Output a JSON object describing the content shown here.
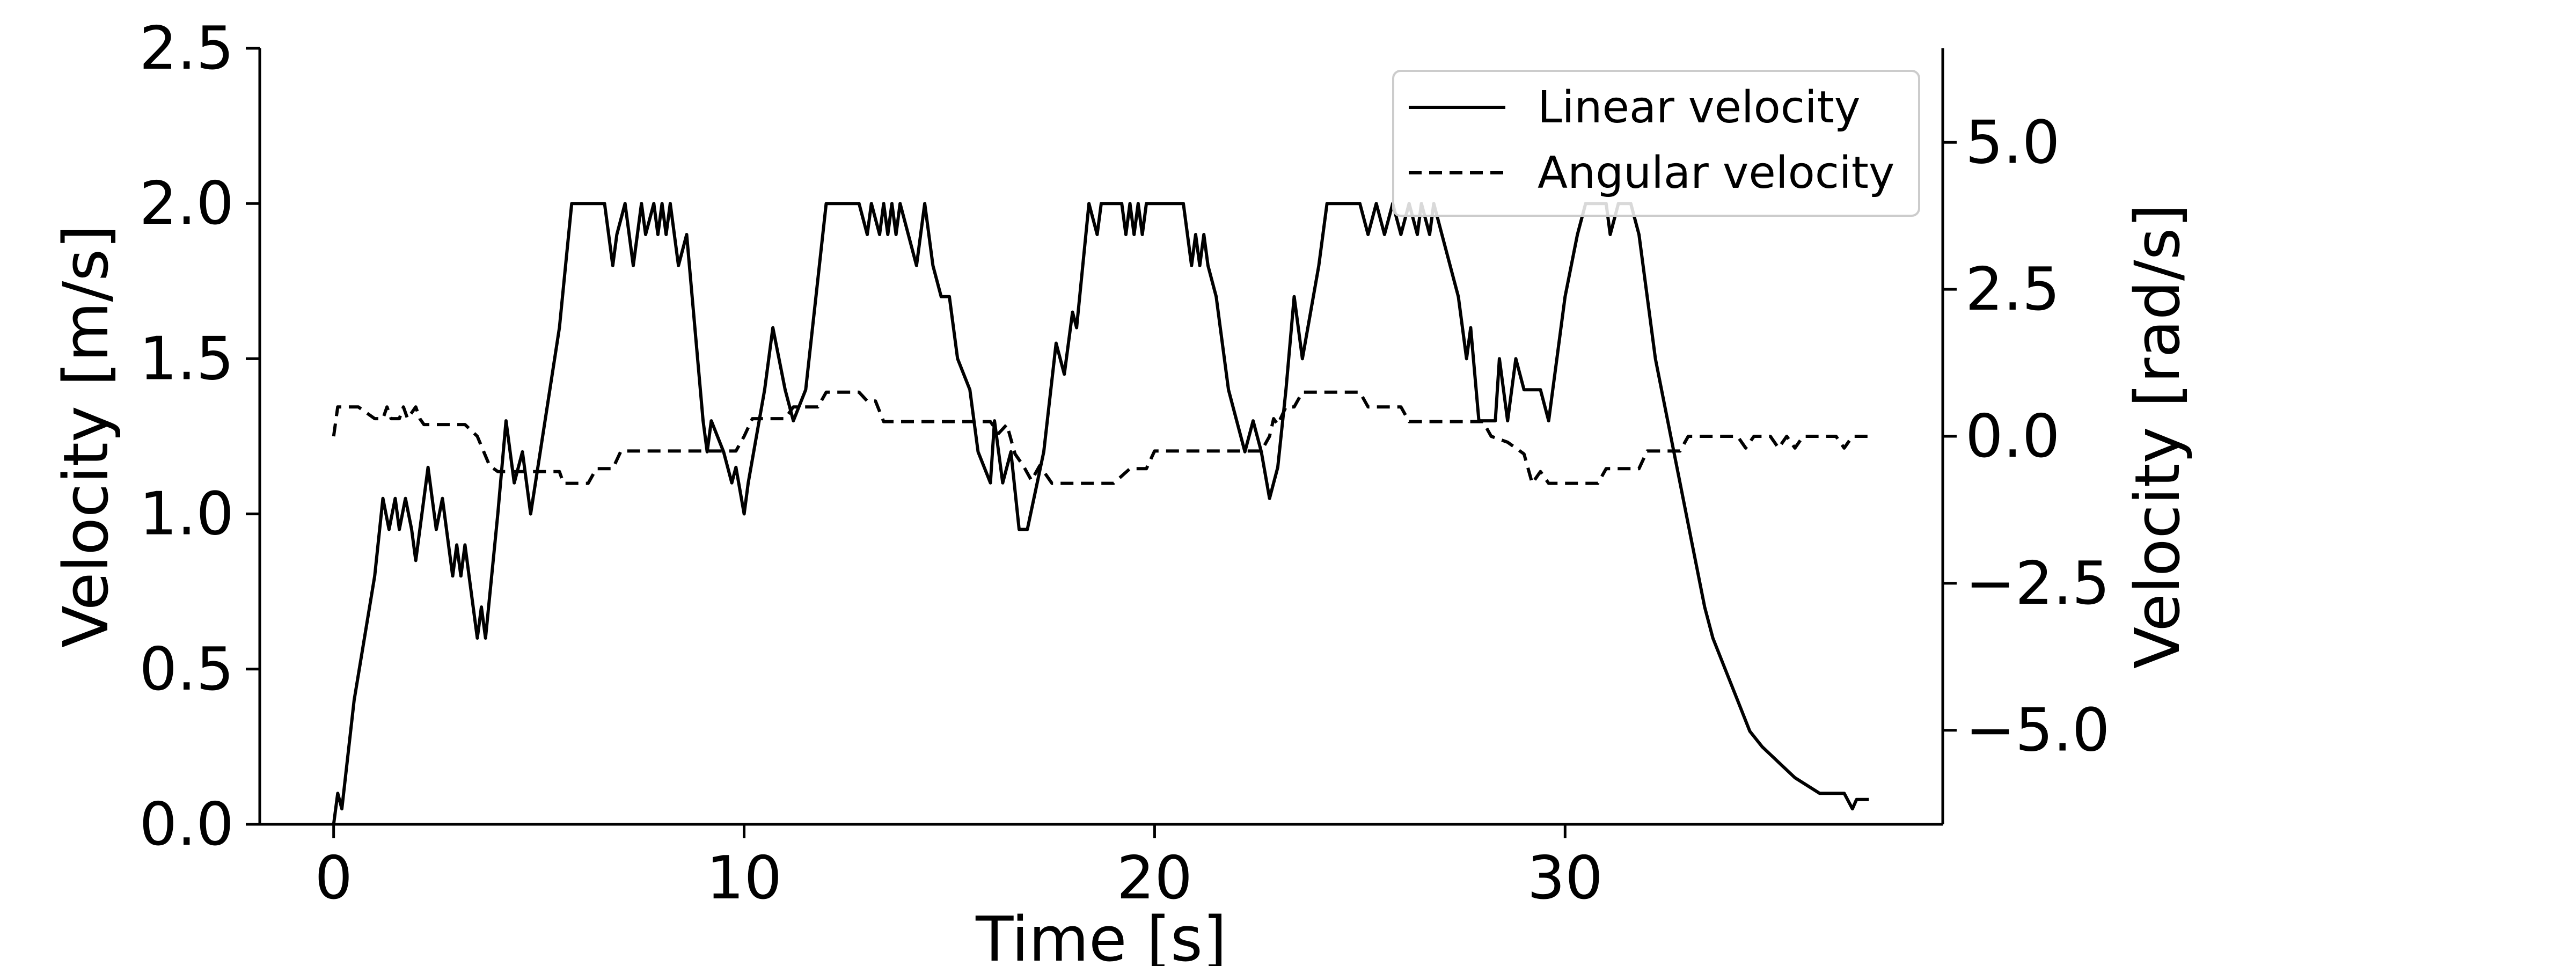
{
  "chart_data": {
    "type": "line",
    "xlabel": "Time [s]",
    "ylabel": "Velocity [m/s]",
    "y2label": "Velocity [rad/s]",
    "xlim": [
      -1.8,
      39.2
    ],
    "ylim": [
      0,
      2.5
    ],
    "y2lim": [
      -6.6,
      6.6
    ],
    "xticks": [
      0,
      10,
      20,
      30
    ],
    "yticks": [
      0.0,
      0.5,
      1.0,
      1.5,
      2.0,
      2.5
    ],
    "y2ticks": [
      -5.0,
      -2.5,
      0.0,
      2.5,
      5.0
    ],
    "xtick_labels": [
      "0",
      "10",
      "20",
      "30"
    ],
    "ytick_labels": [
      "0.0",
      "0.5",
      "1.0",
      "1.5",
      "2.0",
      "2.5"
    ],
    "y2tick_labels": [
      "−5.0",
      "−2.5",
      "0.0",
      "2.5",
      "5.0"
    ],
    "grid": false,
    "legend": {
      "position": "top-right",
      "entries": [
        "Linear velocity",
        "Angular velocity"
      ]
    },
    "series": [
      {
        "name": "Linear velocity",
        "axis": "left",
        "style": "solid",
        "color": "#000000",
        "points": [
          [
            0.0,
            0.0
          ],
          [
            0.1,
            0.1
          ],
          [
            0.2,
            0.05
          ],
          [
            0.5,
            0.4
          ],
          [
            1.0,
            0.8
          ],
          [
            1.2,
            1.05
          ],
          [
            1.35,
            0.95
          ],
          [
            1.5,
            1.05
          ],
          [
            1.6,
            0.95
          ],
          [
            1.75,
            1.05
          ],
          [
            1.9,
            0.95
          ],
          [
            2.0,
            0.85
          ],
          [
            2.3,
            1.15
          ],
          [
            2.5,
            0.95
          ],
          [
            2.65,
            1.05
          ],
          [
            2.8,
            0.9
          ],
          [
            2.9,
            0.8
          ],
          [
            3.0,
            0.9
          ],
          [
            3.1,
            0.8
          ],
          [
            3.2,
            0.9
          ],
          [
            3.4,
            0.7
          ],
          [
            3.5,
            0.6
          ],
          [
            3.6,
            0.7
          ],
          [
            3.7,
            0.6
          ],
          [
            4.0,
            1.0
          ],
          [
            4.2,
            1.3
          ],
          [
            4.4,
            1.1
          ],
          [
            4.6,
            1.2
          ],
          [
            4.8,
            1.0
          ],
          [
            5.5,
            1.6
          ],
          [
            5.8,
            2.0
          ],
          [
            6.0,
            2.0
          ],
          [
            6.6,
            2.0
          ],
          [
            6.8,
            1.8
          ],
          [
            6.9,
            1.9
          ],
          [
            7.1,
            2.0
          ],
          [
            7.3,
            1.8
          ],
          [
            7.5,
            2.0
          ],
          [
            7.6,
            1.9
          ],
          [
            7.8,
            2.0
          ],
          [
            7.9,
            1.9
          ],
          [
            8.0,
            2.0
          ],
          [
            8.1,
            1.9
          ],
          [
            8.2,
            2.0
          ],
          [
            8.4,
            1.8
          ],
          [
            8.6,
            1.9
          ],
          [
            8.8,
            1.6
          ],
          [
            9.0,
            1.3
          ],
          [
            9.1,
            1.2
          ],
          [
            9.2,
            1.3
          ],
          [
            9.5,
            1.2
          ],
          [
            9.7,
            1.1
          ],
          [
            9.8,
            1.15
          ],
          [
            10.0,
            1.0
          ],
          [
            10.1,
            1.1
          ],
          [
            10.5,
            1.4
          ],
          [
            10.7,
            1.6
          ],
          [
            11.0,
            1.4
          ],
          [
            11.2,
            1.3
          ],
          [
            11.5,
            1.4
          ],
          [
            12.0,
            2.0
          ],
          [
            12.8,
            2.0
          ],
          [
            13.0,
            1.9
          ],
          [
            13.1,
            2.0
          ],
          [
            13.3,
            1.9
          ],
          [
            13.4,
            2.0
          ],
          [
            13.5,
            1.9
          ],
          [
            13.6,
            2.0
          ],
          [
            13.7,
            1.9
          ],
          [
            13.8,
            2.0
          ],
          [
            14.0,
            1.9
          ],
          [
            14.2,
            1.8
          ],
          [
            14.4,
            2.0
          ],
          [
            14.6,
            1.8
          ],
          [
            14.8,
            1.7
          ],
          [
            15.0,
            1.7
          ],
          [
            15.2,
            1.5
          ],
          [
            15.5,
            1.4
          ],
          [
            15.7,
            1.2
          ],
          [
            16.0,
            1.1
          ],
          [
            16.1,
            1.3
          ],
          [
            16.3,
            1.1
          ],
          [
            16.5,
            1.2
          ],
          [
            16.7,
            0.95
          ],
          [
            16.9,
            0.95
          ],
          [
            17.3,
            1.2
          ],
          [
            17.6,
            1.55
          ],
          [
            17.8,
            1.45
          ],
          [
            18.0,
            1.65
          ],
          [
            18.1,
            1.6
          ],
          [
            18.4,
            2.0
          ],
          [
            18.6,
            1.9
          ],
          [
            18.7,
            2.0
          ],
          [
            19.2,
            2.0
          ],
          [
            19.3,
            1.9
          ],
          [
            19.4,
            2.0
          ],
          [
            19.5,
            1.9
          ],
          [
            19.6,
            2.0
          ],
          [
            19.7,
            1.9
          ],
          [
            19.8,
            2.0
          ],
          [
            20.7,
            2.0
          ],
          [
            20.9,
            1.8
          ],
          [
            21.0,
            1.9
          ],
          [
            21.1,
            1.8
          ],
          [
            21.2,
            1.9
          ],
          [
            21.3,
            1.8
          ],
          [
            21.5,
            1.7
          ],
          [
            21.6,
            1.6
          ],
          [
            21.8,
            1.4
          ],
          [
            22.0,
            1.3
          ],
          [
            22.2,
            1.2
          ],
          [
            22.4,
            1.3
          ],
          [
            22.6,
            1.2
          ],
          [
            22.8,
            1.05
          ],
          [
            23.0,
            1.15
          ],
          [
            23.2,
            1.4
          ],
          [
            23.4,
            1.7
          ],
          [
            23.6,
            1.5
          ],
          [
            24.0,
            1.8
          ],
          [
            24.2,
            2.0
          ],
          [
            25.0,
            2.0
          ],
          [
            25.2,
            1.9
          ],
          [
            25.4,
            2.0
          ],
          [
            25.6,
            1.9
          ],
          [
            25.8,
            2.0
          ],
          [
            26.0,
            1.9
          ],
          [
            26.2,
            2.0
          ],
          [
            26.4,
            1.9
          ],
          [
            26.5,
            2.0
          ],
          [
            26.7,
            1.9
          ],
          [
            26.8,
            2.0
          ],
          [
            27.0,
            1.9
          ],
          [
            27.2,
            1.8
          ],
          [
            27.4,
            1.7
          ],
          [
            27.6,
            1.5
          ],
          [
            27.7,
            1.6
          ],
          [
            27.9,
            1.3
          ],
          [
            28.3,
            1.3
          ],
          [
            28.4,
            1.5
          ],
          [
            28.6,
            1.3
          ],
          [
            28.8,
            1.5
          ],
          [
            29.0,
            1.4
          ],
          [
            29.4,
            1.4
          ],
          [
            29.6,
            1.3
          ],
          [
            30.0,
            1.7
          ],
          [
            30.3,
            1.9
          ],
          [
            30.5,
            2.0
          ],
          [
            31.0,
            2.0
          ],
          [
            31.1,
            1.9
          ],
          [
            31.3,
            2.0
          ],
          [
            31.6,
            2.0
          ],
          [
            31.8,
            1.9
          ],
          [
            32.0,
            1.7
          ],
          [
            32.2,
            1.5
          ],
          [
            32.5,
            1.3
          ],
          [
            32.8,
            1.1
          ],
          [
            33.1,
            0.9
          ],
          [
            33.4,
            0.7
          ],
          [
            33.6,
            0.6
          ],
          [
            33.9,
            0.5
          ],
          [
            34.2,
            0.4
          ],
          [
            34.5,
            0.3
          ],
          [
            34.8,
            0.25
          ],
          [
            35.2,
            0.2
          ],
          [
            35.6,
            0.15
          ],
          [
            36.2,
            0.1
          ],
          [
            36.8,
            0.1
          ],
          [
            37.0,
            0.05
          ],
          [
            37.1,
            0.08
          ],
          [
            37.4,
            0.08
          ]
        ]
      },
      {
        "name": "Angular velocity",
        "axis": "right",
        "style": "dashed",
        "color": "#000000",
        "points": [
          [
            0.0,
            0.0
          ],
          [
            0.1,
            0.5
          ],
          [
            0.5,
            0.5
          ],
          [
            0.6,
            0.5
          ],
          [
            1.0,
            0.3
          ],
          [
            1.2,
            0.3
          ],
          [
            1.3,
            0.5
          ],
          [
            1.4,
            0.3
          ],
          [
            1.6,
            0.3
          ],
          [
            1.7,
            0.5
          ],
          [
            1.8,
            0.3
          ],
          [
            2.0,
            0.5
          ],
          [
            2.1,
            0.3
          ],
          [
            2.2,
            0.2
          ],
          [
            3.2,
            0.2
          ],
          [
            3.5,
            0.0
          ],
          [
            3.8,
            -0.5
          ],
          [
            4.0,
            -0.6
          ],
          [
            5.5,
            -0.6
          ],
          [
            5.6,
            -0.8
          ],
          [
            6.2,
            -0.8
          ],
          [
            6.4,
            -0.55
          ],
          [
            6.8,
            -0.55
          ],
          [
            7.0,
            -0.25
          ],
          [
            9.8,
            -0.25
          ],
          [
            10.0,
            0.0
          ],
          [
            10.2,
            0.3
          ],
          [
            11.0,
            0.3
          ],
          [
            11.2,
            0.5
          ],
          [
            11.8,
            0.5
          ],
          [
            12.0,
            0.75
          ],
          [
            12.8,
            0.75
          ],
          [
            13.0,
            0.6
          ],
          [
            13.2,
            0.6
          ],
          [
            13.4,
            0.25
          ],
          [
            16.0,
            0.25
          ],
          [
            16.2,
            0.05
          ],
          [
            16.4,
            0.2
          ],
          [
            16.6,
            -0.3
          ],
          [
            16.8,
            -0.5
          ],
          [
            17.0,
            -0.75
          ],
          [
            17.2,
            -0.5
          ],
          [
            17.5,
            -0.8
          ],
          [
            19.0,
            -0.8
          ],
          [
            19.4,
            -0.55
          ],
          [
            19.8,
            -0.55
          ],
          [
            20.0,
            -0.25
          ],
          [
            22.6,
            -0.25
          ],
          [
            22.8,
            0.0
          ],
          [
            22.9,
            0.3
          ],
          [
            23.0,
            0.2
          ],
          [
            23.2,
            0.5
          ],
          [
            23.4,
            0.5
          ],
          [
            23.6,
            0.75
          ],
          [
            25.0,
            0.75
          ],
          [
            25.2,
            0.5
          ],
          [
            26.0,
            0.5
          ],
          [
            26.2,
            0.25
          ],
          [
            28.0,
            0.25
          ],
          [
            28.2,
            0.0
          ],
          [
            28.6,
            -0.1
          ],
          [
            29.0,
            -0.3
          ],
          [
            29.2,
            -0.8
          ],
          [
            29.4,
            -0.6
          ],
          [
            29.6,
            -0.8
          ],
          [
            30.8,
            -0.8
          ],
          [
            31.0,
            -0.55
          ],
          [
            31.8,
            -0.55
          ],
          [
            32.0,
            -0.25
          ],
          [
            32.8,
            -0.25
          ],
          [
            33.0,
            0.0
          ],
          [
            33.6,
            0.0
          ],
          [
            34.0,
            0.0
          ],
          [
            34.2,
            0.0
          ],
          [
            34.4,
            -0.2
          ],
          [
            34.6,
            0.0
          ],
          [
            35.0,
            0.0
          ],
          [
            35.2,
            -0.2
          ],
          [
            35.4,
            0.0
          ],
          [
            35.6,
            -0.2
          ],
          [
            35.8,
            0.0
          ],
          [
            36.6,
            0.0
          ],
          [
            36.8,
            -0.2
          ],
          [
            37.0,
            0.0
          ],
          [
            37.4,
            0.0
          ]
        ]
      }
    ]
  }
}
